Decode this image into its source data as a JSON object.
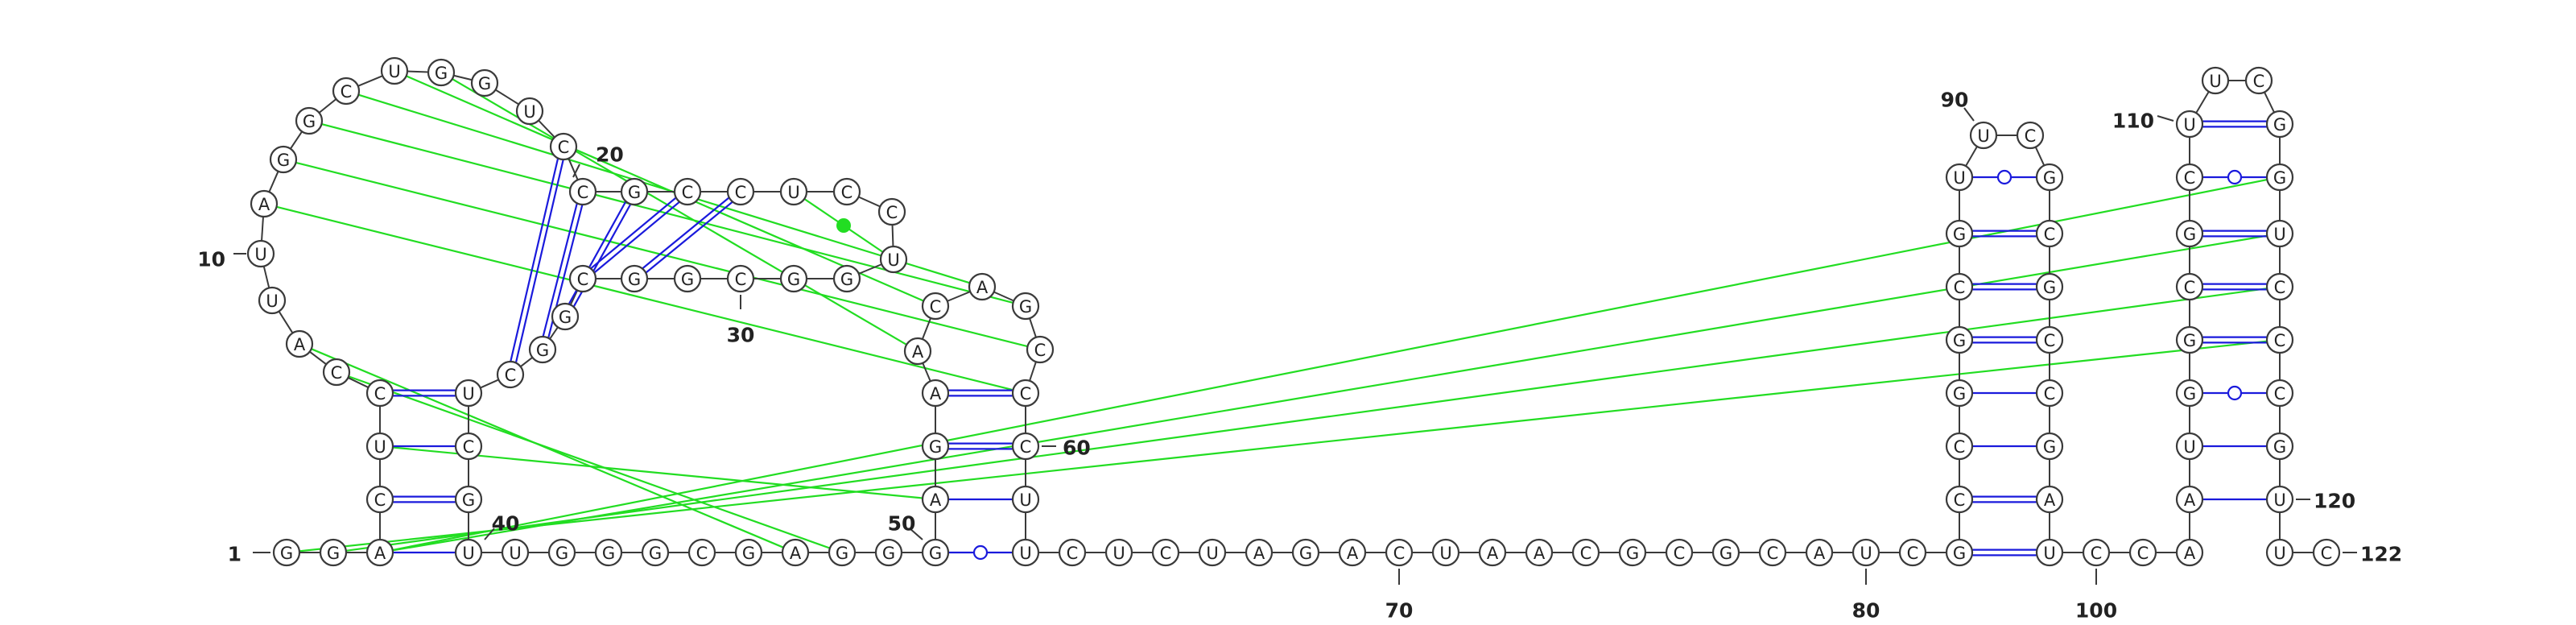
{
  "diagram": {
    "type": "rna-secondary-structure",
    "colors": {
      "backbone": "#3a3a3a",
      "canonical_pair": "#1a1adc",
      "noncanonical_pair": "#1a1adc",
      "tertiary_interaction": "#22dd22",
      "nucleotide_fill": "#ffffff"
    },
    "nucleotides": [
      {
        "i": 1,
        "b": "G"
      },
      {
        "i": 2,
        "b": "G"
      },
      {
        "i": 3,
        "b": "A"
      },
      {
        "i": 4,
        "b": "C"
      },
      {
        "i": 5,
        "b": "U"
      },
      {
        "i": 6,
        "b": "C"
      },
      {
        "i": 7,
        "b": "C"
      },
      {
        "i": 8,
        "b": "A"
      },
      {
        "i": 9,
        "b": "U"
      },
      {
        "i": 10,
        "b": "U"
      },
      {
        "i": 11,
        "b": "A"
      },
      {
        "i": 12,
        "b": "G"
      },
      {
        "i": 13,
        "b": "G"
      },
      {
        "i": 14,
        "b": "C"
      },
      {
        "i": 15,
        "b": "U"
      },
      {
        "i": 16,
        "b": "G"
      },
      {
        "i": 17,
        "b": "G"
      },
      {
        "i": 18,
        "b": "U"
      },
      {
        "i": 19,
        "b": "C"
      },
      {
        "i": 20,
        "b": "C"
      },
      {
        "i": 21,
        "b": "G"
      },
      {
        "i": 22,
        "b": "C"
      },
      {
        "i": 23,
        "b": "C"
      },
      {
        "i": 24,
        "b": "U"
      },
      {
        "i": 25,
        "b": "C"
      },
      {
        "i": 26,
        "b": "C"
      },
      {
        "i": 27,
        "b": "U"
      },
      {
        "i": 28,
        "b": "G"
      },
      {
        "i": 29,
        "b": "G"
      },
      {
        "i": 30,
        "b": "C"
      },
      {
        "i": 31,
        "b": "G"
      },
      {
        "i": 32,
        "b": "G"
      },
      {
        "i": 33,
        "b": "C"
      },
      {
        "i": 34,
        "b": "G"
      },
      {
        "i": 35,
        "b": "G"
      },
      {
        "i": 36,
        "b": "C"
      },
      {
        "i": 37,
        "b": "U"
      },
      {
        "i": 38,
        "b": "C"
      },
      {
        "i": 39,
        "b": "G"
      },
      {
        "i": 40,
        "b": "U"
      },
      {
        "i": 41,
        "b": "U"
      },
      {
        "i": 42,
        "b": "G"
      },
      {
        "i": 43,
        "b": "G"
      },
      {
        "i": 44,
        "b": "G"
      },
      {
        "i": 45,
        "b": "C"
      },
      {
        "i": 46,
        "b": "G"
      },
      {
        "i": 47,
        "b": "A"
      },
      {
        "i": 48,
        "b": "G"
      },
      {
        "i": 49,
        "b": "G"
      },
      {
        "i": 50,
        "b": "G"
      },
      {
        "i": 51,
        "b": "A"
      },
      {
        "i": 52,
        "b": "G"
      },
      {
        "i": 53,
        "b": "A"
      },
      {
        "i": 54,
        "b": "A"
      },
      {
        "i": 55,
        "b": "C"
      },
      {
        "i": 56,
        "b": "A"
      },
      {
        "i": 57,
        "b": "G"
      },
      {
        "i": 58,
        "b": "C"
      },
      {
        "i": 59,
        "b": "C"
      },
      {
        "i": 60,
        "b": "C"
      },
      {
        "i": 61,
        "b": "U"
      },
      {
        "i": 62,
        "b": "U"
      },
      {
        "i": 63,
        "b": "C"
      },
      {
        "i": 64,
        "b": "U"
      },
      {
        "i": 65,
        "b": "C"
      },
      {
        "i": 66,
        "b": "U"
      },
      {
        "i": 67,
        "b": "A"
      },
      {
        "i": 68,
        "b": "G"
      },
      {
        "i": 69,
        "b": "A"
      },
      {
        "i": 70,
        "b": "C"
      },
      {
        "i": 71,
        "b": "U"
      },
      {
        "i": 72,
        "b": "A"
      },
      {
        "i": 73,
        "b": "A"
      },
      {
        "i": 74,
        "b": "C"
      },
      {
        "i": 75,
        "b": "G"
      },
      {
        "i": 76,
        "b": "C"
      },
      {
        "i": 77,
        "b": "G"
      },
      {
        "i": 78,
        "b": "C"
      },
      {
        "i": 79,
        "b": "A"
      },
      {
        "i": 80,
        "b": "U"
      },
      {
        "i": 81,
        "b": "C"
      },
      {
        "i": 82,
        "b": "G"
      },
      {
        "i": 83,
        "b": "C"
      },
      {
        "i": 84,
        "b": "C"
      },
      {
        "i": 85,
        "b": "G"
      },
      {
        "i": 86,
        "b": "G"
      },
      {
        "i": 87,
        "b": "C"
      },
      {
        "i": 88,
        "b": "G"
      },
      {
        "i": 89,
        "b": "U"
      },
      {
        "i": 90,
        "b": "U"
      },
      {
        "i": 91,
        "b": "C"
      },
      {
        "i": 92,
        "b": "G"
      },
      {
        "i": 93,
        "b": "C"
      },
      {
        "i": 94,
        "b": "G"
      },
      {
        "i": 95,
        "b": "C"
      },
      {
        "i": 96,
        "b": "C"
      },
      {
        "i": 97,
        "b": "G"
      },
      {
        "i": 98,
        "b": "A"
      },
      {
        "i": 99,
        "b": "U"
      },
      {
        "i": 100,
        "b": "C"
      },
      {
        "i": 101,
        "b": "C"
      },
      {
        "i": 102,
        "b": "A"
      },
      {
        "i": 103,
        "b": "A"
      },
      {
        "i": 104,
        "b": "U"
      },
      {
        "i": 105,
        "b": "G"
      },
      {
        "i": 106,
        "b": "G"
      },
      {
        "i": 107,
        "b": "C"
      },
      {
        "i": 108,
        "b": "G"
      },
      {
        "i": 109,
        "b": "C"
      },
      {
        "i": 110,
        "b": "U"
      },
      {
        "i": 111,
        "b": "U"
      },
      {
        "i": 112,
        "b": "C"
      },
      {
        "i": 113,
        "b": "G"
      },
      {
        "i": 114,
        "b": "G"
      },
      {
        "i": 115,
        "b": "U"
      },
      {
        "i": 116,
        "b": "C"
      },
      {
        "i": 117,
        "b": "C"
      },
      {
        "i": 118,
        "b": "C"
      },
      {
        "i": 119,
        "b": "G"
      },
      {
        "i": 120,
        "b": "U"
      },
      {
        "i": 121,
        "b": "U"
      },
      {
        "i": 122,
        "b": "C"
      }
    ],
    "pairs": [
      {
        "a": 3,
        "b": 40,
        "type": "single"
      },
      {
        "a": 4,
        "b": 39,
        "type": "double"
      },
      {
        "a": 5,
        "b": 38,
        "type": "single"
      },
      {
        "a": 6,
        "b": 37,
        "type": "double"
      },
      {
        "a": 19,
        "b": 36,
        "type": "double"
      },
      {
        "a": 20,
        "b": 35,
        "type": "double"
      },
      {
        "a": 21,
        "b": 34,
        "type": "double"
      },
      {
        "a": 22,
        "b": 33,
        "type": "double"
      },
      {
        "a": 23,
        "b": 32,
        "type": "double"
      },
      {
        "a": 50,
        "b": 62,
        "type": "circle"
      },
      {
        "a": 51,
        "b": 61,
        "type": "single"
      },
      {
        "a": 52,
        "b": 60,
        "type": "double"
      },
      {
        "a": 53,
        "b": 59,
        "type": "double"
      },
      {
        "a": 82,
        "b": 99,
        "type": "double"
      },
      {
        "a": 83,
        "b": 98,
        "type": "double"
      },
      {
        "a": 84,
        "b": 97,
        "type": "single"
      },
      {
        "a": 85,
        "b": 96,
        "type": "single"
      },
      {
        "a": 86,
        "b": 95,
        "type": "double"
      },
      {
        "a": 87,
        "b": 94,
        "type": "double"
      },
      {
        "a": 88,
        "b": 93,
        "type": "double"
      },
      {
        "a": 89,
        "b": 92,
        "type": "circle"
      },
      {
        "a": 103,
        "b": 120,
        "type": "single"
      },
      {
        "a": 104,
        "b": 119,
        "type": "single"
      },
      {
        "a": 105,
        "b": 118,
        "type": "circle"
      },
      {
        "a": 106,
        "b": 117,
        "type": "double"
      },
      {
        "a": 107,
        "b": 116,
        "type": "double"
      },
      {
        "a": 108,
        "b": 115,
        "type": "double"
      },
      {
        "a": 109,
        "b": 114,
        "type": "circle"
      },
      {
        "a": 110,
        "b": 113,
        "type": "double"
      }
    ],
    "tertiary_pairs": [
      {
        "a": 24,
        "b": 27,
        "dot": true
      },
      {
        "a": 1,
        "b": 117
      },
      {
        "a": 2,
        "b": 116
      },
      {
        "a": 3,
        "b": 115
      },
      {
        "a": 3,
        "b": 114
      },
      {
        "a": 5,
        "b": 51
      },
      {
        "a": 7,
        "b": 48
      },
      {
        "a": 8,
        "b": 47
      },
      {
        "a": 11,
        "b": 59
      },
      {
        "a": 12,
        "b": 58
      },
      {
        "a": 13,
        "b": 57
      },
      {
        "a": 14,
        "b": 56
      },
      {
        "a": 15,
        "b": 55
      },
      {
        "a": 16,
        "b": 54
      }
    ],
    "number_labels": [
      {
        "text": "1",
        "anchor": 1
      },
      {
        "text": "10",
        "anchor": 10
      },
      {
        "text": "20",
        "anchor": 19
      },
      {
        "text": "30",
        "anchor": 33
      },
      {
        "text": "40",
        "anchor": 39
      },
      {
        "text": "50",
        "anchor": 49
      },
      {
        "text": "60",
        "anchor": 59
      },
      {
        "text": "70",
        "anchor": 70
      },
      {
        "text": "80",
        "anchor": 80
      },
      {
        "text": "90",
        "anchor": 89
      },
      {
        "text": "100",
        "anchor": 101
      },
      {
        "text": "110",
        "anchor": 110
      },
      {
        "text": "120",
        "anchor": 120
      },
      {
        "text": "122",
        "anchor": 122
      }
    ]
  }
}
